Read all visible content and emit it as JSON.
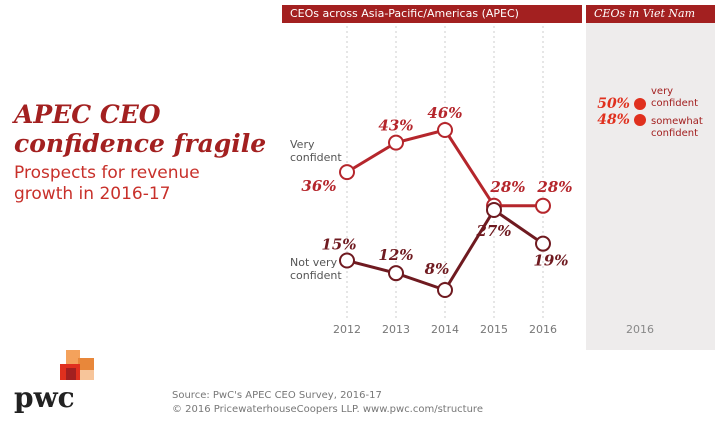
{
  "title": "APEC CEO confidence fragile",
  "subtitle": "Prospects for revenue growth in 2016-17",
  "chart_data": [
    {
      "type": "line",
      "title": "CEOs across Asia-Pacific/Americas (APEC)",
      "categories": [
        "2012",
        "2013",
        "2014",
        "2015",
        "2016"
      ],
      "series": [
        {
          "name": "Very confident",
          "color": "#b5262c",
          "values": [
            36,
            43,
            46,
            28,
            28
          ],
          "value_labels": [
            "36%",
            "43%",
            "46%",
            "28%",
            "28%"
          ]
        },
        {
          "name": "Not very confident",
          "color": "#6f1a20",
          "values": [
            15,
            12,
            8,
            27,
            19
          ],
          "value_labels": [
            "15%",
            "12%",
            "8%",
            "27%",
            "19%"
          ]
        }
      ]
    },
    {
      "type": "dot",
      "title": "CEOs in Viet Nam",
      "categories": [
        "2016"
      ],
      "series": [
        {
          "name": "very confident",
          "color": "#e0301e",
          "values": [
            50
          ],
          "value_labels": [
            "50%"
          ]
        },
        {
          "name": "somewhat confident",
          "color": "#e0301e",
          "values": [
            48
          ],
          "value_labels": [
            "48%"
          ]
        }
      ]
    }
  ],
  "source": "Source: PwC's APEC CEO Survey, 2016-17",
  "copyright": "© 2016 PricewaterhouseCoopers LLP. www.pwc.com/structure",
  "logo": "pwc"
}
